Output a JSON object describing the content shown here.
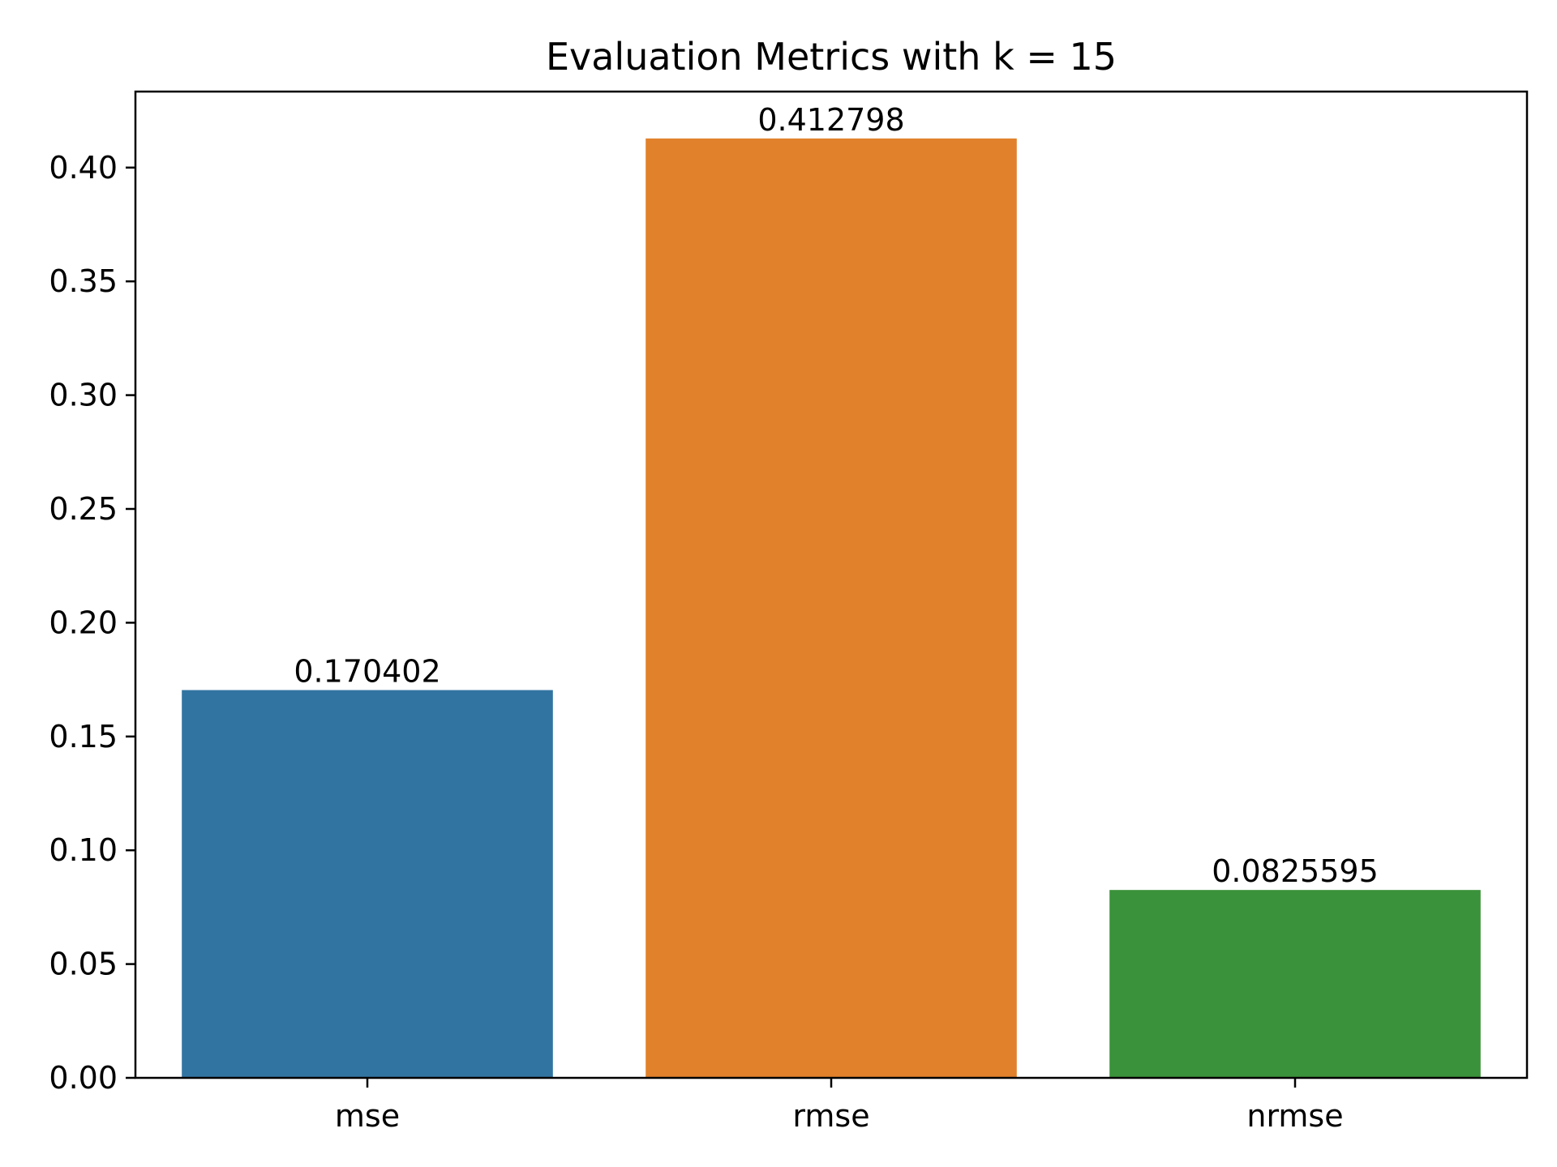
{
  "chart_data": {
    "type": "bar",
    "title": "Evaluation Metrics with k = 15",
    "xlabel": "",
    "ylabel": "",
    "categories": [
      "mse",
      "rmse",
      "nrmse"
    ],
    "values": [
      0.170402,
      0.412798,
      0.0825595
    ],
    "data_labels": [
      "0.170402",
      "0.412798",
      "0.0825595"
    ],
    "colors": [
      "#3274a1",
      "#e1812c",
      "#3a923a"
    ],
    "ylim": [
      0,
      0.4334
    ],
    "yticks": [
      0.0,
      0.05,
      0.1,
      0.15,
      0.2,
      0.25,
      0.3,
      0.35,
      0.4
    ],
    "ytick_labels": [
      "0.00",
      "0.05",
      "0.10",
      "0.15",
      "0.20",
      "0.25",
      "0.30",
      "0.35",
      "0.40"
    ],
    "grid": false,
    "legend": "none"
  }
}
